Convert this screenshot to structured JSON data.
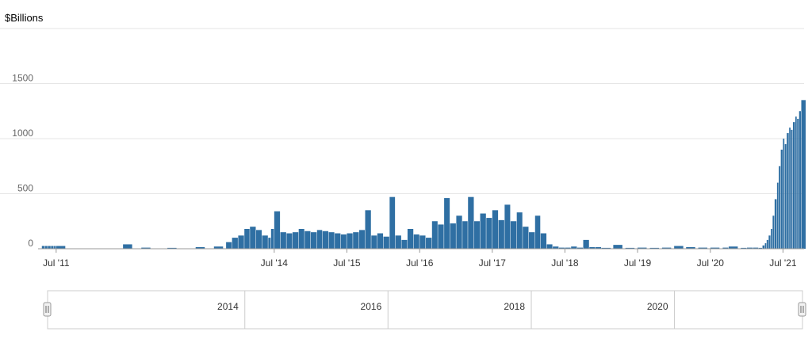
{
  "chart_data": {
    "type": "bar",
    "ylabel": "$Billions",
    "ylim": [
      0,
      2000
    ],
    "y_ticks": [
      "0",
      "500",
      "1000",
      "1500"
    ],
    "y_tick_values": [
      0,
      500,
      1000,
      1500
    ],
    "x_start": "2011-04-01",
    "x_end": "2021-10-15",
    "x_ticks": [
      {
        "label": "Jul '11",
        "date": "2011-07-01"
      },
      {
        "label": "Jul '14",
        "date": "2014-07-01"
      },
      {
        "label": "Jul '15",
        "date": "2015-07-01"
      },
      {
        "label": "Jul '16",
        "date": "2016-07-01"
      },
      {
        "label": "Jul '17",
        "date": "2017-07-01"
      },
      {
        "label": "Jul '18",
        "date": "2018-07-01"
      },
      {
        "label": "Jul '19",
        "date": "2019-07-01"
      },
      {
        "label": "Jul '20",
        "date": "2020-07-01"
      },
      {
        "label": "Jul '21",
        "date": "2021-07-01"
      }
    ],
    "grid": true,
    "bar_color": "#2f6fa3",
    "series": [
      {
        "points": [
          {
            "x": "2011-04-20",
            "y": 25
          },
          {
            "x": "2011-05-05",
            "y": 25
          },
          {
            "x": "2011-05-20",
            "y": 25
          },
          {
            "x": "2011-06-05",
            "y": 25
          },
          {
            "x": "2011-06-20",
            "y": 25
          },
          {
            "x": "2011-07-01",
            "y": 25
          },
          {
            "x": "2011-08-20",
            "y": 3
          },
          {
            "x": "2012-06-01",
            "y": 40
          },
          {
            "x": "2012-09-01",
            "y": 10
          },
          {
            "x": "2013-01-10",
            "y": 8
          },
          {
            "x": "2013-06-01",
            "y": 15
          },
          {
            "x": "2013-09-01",
            "y": 20
          },
          {
            "x": "2013-11-01",
            "y": 60
          },
          {
            "x": "2013-12-01",
            "y": 100
          },
          {
            "x": "2014-01-01",
            "y": 120
          },
          {
            "x": "2014-02-01",
            "y": 180
          },
          {
            "x": "2014-03-01",
            "y": 200
          },
          {
            "x": "2014-04-01",
            "y": 170
          },
          {
            "x": "2014-05-01",
            "y": 120
          },
          {
            "x": "2014-06-01",
            "y": 100
          },
          {
            "x": "2014-06-15",
            "y": 180
          },
          {
            "x": "2014-07-01",
            "y": 340
          },
          {
            "x": "2014-08-01",
            "y": 150
          },
          {
            "x": "2014-09-01",
            "y": 140
          },
          {
            "x": "2014-10-01",
            "y": 150
          },
          {
            "x": "2014-11-01",
            "y": 180
          },
          {
            "x": "2014-12-01",
            "y": 160
          },
          {
            "x": "2015-01-01",
            "y": 150
          },
          {
            "x": "2015-02-01",
            "y": 170
          },
          {
            "x": "2015-03-01",
            "y": 160
          },
          {
            "x": "2015-04-01",
            "y": 150
          },
          {
            "x": "2015-05-01",
            "y": 140
          },
          {
            "x": "2015-06-01",
            "y": 130
          },
          {
            "x": "2015-07-01",
            "y": 140
          },
          {
            "x": "2015-08-01",
            "y": 150
          },
          {
            "x": "2015-09-01",
            "y": 170
          },
          {
            "x": "2015-10-01",
            "y": 350
          },
          {
            "x": "2015-11-01",
            "y": 120
          },
          {
            "x": "2015-12-01",
            "y": 140
          },
          {
            "x": "2016-01-01",
            "y": 110
          },
          {
            "x": "2016-02-01",
            "y": 470
          },
          {
            "x": "2016-03-01",
            "y": 120
          },
          {
            "x": "2016-04-01",
            "y": 80
          },
          {
            "x": "2016-05-01",
            "y": 180
          },
          {
            "x": "2016-06-01",
            "y": 130
          },
          {
            "x": "2016-07-01",
            "y": 120
          },
          {
            "x": "2016-08-01",
            "y": 100
          },
          {
            "x": "2016-09-01",
            "y": 250
          },
          {
            "x": "2016-10-01",
            "y": 220
          },
          {
            "x": "2016-11-01",
            "y": 460
          },
          {
            "x": "2016-12-01",
            "y": 230
          },
          {
            "x": "2017-01-01",
            "y": 300
          },
          {
            "x": "2017-02-01",
            "y": 250
          },
          {
            "x": "2017-03-01",
            "y": 470
          },
          {
            "x": "2017-04-01",
            "y": 250
          },
          {
            "x": "2017-05-01",
            "y": 320
          },
          {
            "x": "2017-06-01",
            "y": 280
          },
          {
            "x": "2017-07-01",
            "y": 350
          },
          {
            "x": "2017-08-01",
            "y": 260
          },
          {
            "x": "2017-09-01",
            "y": 400
          },
          {
            "x": "2017-10-01",
            "y": 250
          },
          {
            "x": "2017-11-01",
            "y": 330
          },
          {
            "x": "2017-12-01",
            "y": 200
          },
          {
            "x": "2018-01-01",
            "y": 150
          },
          {
            "x": "2018-02-01",
            "y": 300
          },
          {
            "x": "2018-03-01",
            "y": 140
          },
          {
            "x": "2018-04-01",
            "y": 40
          },
          {
            "x": "2018-05-01",
            "y": 20
          },
          {
            "x": "2018-06-01",
            "y": 10
          },
          {
            "x": "2018-07-01",
            "y": 10
          },
          {
            "x": "2018-08-01",
            "y": 20
          },
          {
            "x": "2018-09-01",
            "y": 10
          },
          {
            "x": "2018-10-01",
            "y": 80
          },
          {
            "x": "2018-11-01",
            "y": 15
          },
          {
            "x": "2018-12-01",
            "y": 15
          },
          {
            "x": "2019-01-01",
            "y": 8
          },
          {
            "x": "2019-03-01",
            "y": 35
          },
          {
            "x": "2019-05-01",
            "y": 8
          },
          {
            "x": "2019-07-01",
            "y": 10
          },
          {
            "x": "2019-09-01",
            "y": 8
          },
          {
            "x": "2019-11-01",
            "y": 10
          },
          {
            "x": "2020-01-01",
            "y": 25
          },
          {
            "x": "2020-03-01",
            "y": 15
          },
          {
            "x": "2020-05-01",
            "y": 10
          },
          {
            "x": "2020-07-01",
            "y": 10
          },
          {
            "x": "2020-09-01",
            "y": 10
          },
          {
            "x": "2020-10-01",
            "y": 20
          },
          {
            "x": "2020-12-01",
            "y": 8
          },
          {
            "x": "2021-01-01",
            "y": 10
          },
          {
            "x": "2021-02-01",
            "y": 10
          },
          {
            "x": "2021-03-01",
            "y": 8
          },
          {
            "x": "2021-03-20",
            "y": 30
          },
          {
            "x": "2021-04-01",
            "y": 50
          },
          {
            "x": "2021-04-10",
            "y": 80
          },
          {
            "x": "2021-04-20",
            "y": 120
          },
          {
            "x": "2021-05-01",
            "y": 180
          },
          {
            "x": "2021-05-10",
            "y": 300
          },
          {
            "x": "2021-05-20",
            "y": 450
          },
          {
            "x": "2021-06-01",
            "y": 600
          },
          {
            "x": "2021-06-10",
            "y": 750
          },
          {
            "x": "2021-06-20",
            "y": 900
          },
          {
            "x": "2021-07-01",
            "y": 1000
          },
          {
            "x": "2021-07-10",
            "y": 950
          },
          {
            "x": "2021-07-20",
            "y": 1050
          },
          {
            "x": "2021-08-01",
            "y": 1100
          },
          {
            "x": "2021-08-10",
            "y": 1080
          },
          {
            "x": "2021-08-20",
            "y": 1150
          },
          {
            "x": "2021-09-01",
            "y": 1200
          },
          {
            "x": "2021-09-10",
            "y": 1180
          },
          {
            "x": "2021-09-20",
            "y": 1250
          },
          {
            "x": "2021-10-01",
            "y": 1350
          }
        ]
      }
    ]
  },
  "navigator": {
    "labels": [
      {
        "text": "2014",
        "date": "2014-01-01"
      },
      {
        "text": "2016",
        "date": "2016-01-01"
      },
      {
        "text": "2018",
        "date": "2018-01-01"
      },
      {
        "text": "2020",
        "date": "2020-01-01"
      }
    ]
  }
}
